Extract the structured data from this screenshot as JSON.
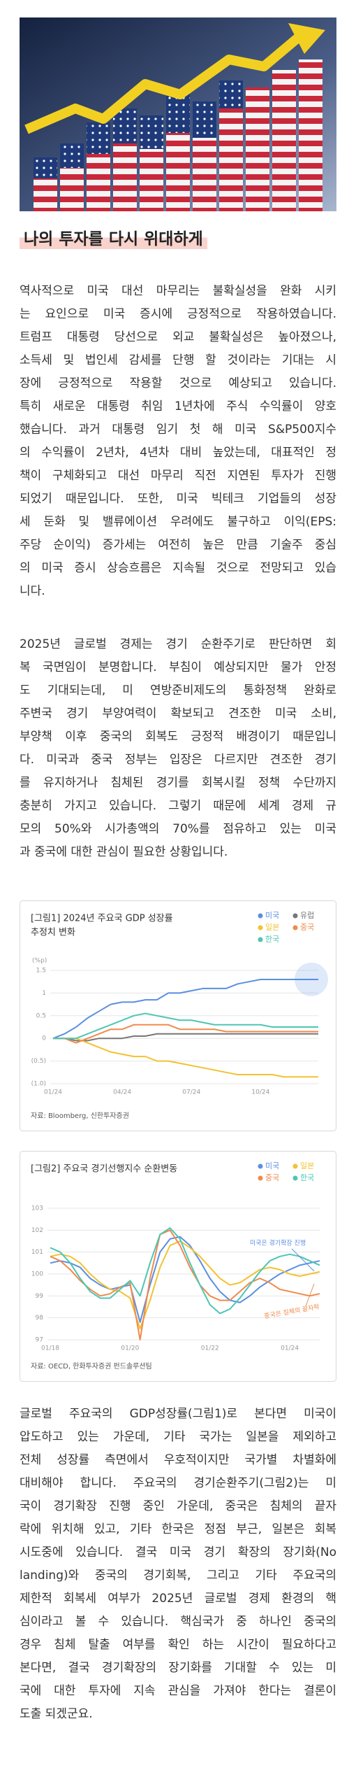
{
  "heading": "나의 투자를 다시 위대하게",
  "paragraphs": [
    [
      "역사적으로 미국 대선 마무리는 불확실성을 완화 시키",
      "는 요인으로 미국 증시에 긍정적으로 작용하였습니다.",
      "트럼프 대통령 당선으로 외교 불확실성은 높아졌으나,",
      "소득세 및 법인세 감세를 단행 할 것이라는 기대는 시",
      "장에 긍정적으로 작용할 것으로 예상되고 있습니다.",
      "특히 새로운 대통령 취임 1년차에 주식 수익률이 양호",
      "했습니다. 과거 대통령 임기 첫 해 미국 S&P500지수",
      "의 수익률이 2년차, 4년차 대비 높았는데, 대표적인 정",
      "책이 구체화되고 대선 마무리 직전 지연된 투자가 진행",
      "되었기 때문입니다. 또한, 미국 빅테크 기업들의 성장",
      "세 둔화 및 밸류에이션 우려에도 불구하고 이익(EPS:",
      "주당 순이익) 증가세는 여전히 높은 만큼 기술주 중심",
      "의 미국 증시 상승흐름은 지속될 것으로 전망되고 있습",
      "니다."
    ],
    [
      "2025년 글로벌 경제는 경기 순환주기로 판단하면 회",
      "복 국면임이 분명합니다. 부침이 예상되지만 물가 안정",
      "도 기대되는데, 미 연방준비제도의 통화정책 완화로",
      "주변국 경기 부양여력이 확보되고 견조한 미국 소비,",
      "부양책 이후 중국의 회복도 긍정적 배경이기 때문입니",
      "다. 미국과 중국 정부는 입장은 다르지만 견조한 경기",
      "를 유지하거나 침체된 경기를 회복시킬 정책 수단까지",
      "충분히 가지고 있습니다. 그렇기 때문에 세계 경제 규",
      "모의 50%와 시가총액의 70%를 점유하고 있는 미국",
      "과 중국에 대한 관심이 필요한 상황입니다."
    ],
    [
      "글로벌 주요국의 GDP성장률(그림1)로 본다면 미국이",
      "압도하고 있는 가운데, 기타 국가는 일본을 제외하고",
      "전체 성장률 측면에서 우호적이지만 국가별 차별화에",
      "대비해야 합니다. 주요국의 경기순환주기(그림2)는 미",
      "국이 경기확장 진행 중인 가운데, 중국은 침체의 끝자",
      "락에 위치해 있고, 기타 한국은 정점 부근, 일본은 회복",
      "시도중에 있습니다. 결국 미국 경기 확장의 장기화(No",
      "landing)와 중국의 경기회복, 그리고 기타 주요국의",
      "제한적 회복세 여부가 2025년 글로벌 경제 환경의 핵",
      "심이라고 볼 수 있습니다. 핵심국가 중 하나인 중국의",
      "경우 침체 탈출 여부를 확인 하는 시간이 필요하다고",
      "본다면, 결국 경기확장의 장기화를 기대할 수 있는 미",
      "국에 대한 투자에 지속 관심을 가져야 한다는 결론이",
      "도출 되겠군요."
    ]
  ],
  "figures": [
    {
      "type": "line",
      "title": [
        "[그림1] 2024년 주요국 GDP 성장률",
        "추정치 변화"
      ],
      "unit": "(%p)",
      "source": "자료: Bloomberg, 신한투자증권",
      "categories": [
        "01/24",
        null,
        null,
        null,
        null,
        null,
        "04/24",
        null,
        null,
        null,
        null,
        null,
        "07/24",
        null,
        null,
        null,
        null,
        null,
        "10/24",
        null,
        null,
        null,
        null,
        null
      ],
      "ylim": [
        -1.0,
        1.5
      ],
      "yticks": [
        1.5,
        1.0,
        0.5,
        0.0,
        {
          "value": -0.5,
          "label": "(0.5)"
        },
        {
          "value": -1.0,
          "label": "(1.0)"
        }
      ],
      "grid": true,
      "series": [
        {
          "name": "미국",
          "color": "#5b8fe0",
          "values": [
            0,
            0.1,
            0.25,
            0.45,
            0.6,
            0.75,
            0.8,
            0.8,
            0.85,
            0.85,
            1.0,
            1.0,
            1.05,
            1.1,
            1.1,
            1.1,
            1.2,
            1.25,
            1.3,
            1.3,
            1.3,
            1.3,
            1.3,
            1.3
          ]
        },
        {
          "name": "유럽",
          "color": "#777777",
          "values": [
            0,
            0,
            -0.05,
            -0.05,
            0,
            0,
            0,
            0.05,
            0.05,
            0.1,
            0.1,
            0.1,
            0.1,
            0.1,
            0.1,
            0.1,
            0.1,
            0.1,
            0.1,
            0.1,
            0.1,
            0.1,
            0.1,
            0.1
          ]
        },
        {
          "name": "일본",
          "color": "#f2c230",
          "values": [
            0,
            0,
            0,
            -0.1,
            -0.2,
            -0.3,
            -0.35,
            -0.4,
            -0.4,
            -0.5,
            -0.5,
            -0.55,
            -0.6,
            -0.65,
            -0.7,
            -0.75,
            -0.8,
            -0.8,
            -0.8,
            -0.8,
            -0.85,
            -0.85,
            -0.85,
            -0.85
          ]
        },
        {
          "name": "중국",
          "color": "#f08a4b",
          "values": [
            0,
            0,
            -0.1,
            0,
            0.1,
            0.2,
            0.2,
            0.3,
            0.3,
            0.3,
            0.3,
            0.2,
            0.2,
            0.2,
            0.2,
            0.15,
            0.15,
            0.15,
            0.15,
            0.15,
            0.15,
            0.15,
            0.15,
            0.15
          ]
        },
        {
          "name": "한국",
          "color": "#4cc6b4",
          "values": [
            0,
            0,
            0,
            0.1,
            0.2,
            0.3,
            0.4,
            0.5,
            0.55,
            0.5,
            0.45,
            0.4,
            0.4,
            0.35,
            0.3,
            0.3,
            0.3,
            0.3,
            0.3,
            0.25,
            0.25,
            0.25,
            0.25,
            0.25
          ]
        }
      ]
    },
    {
      "type": "line",
      "title": [
        "[그림2] 주요국 경기선행지수 순환변동"
      ],
      "source": "자료: OECD, 한화투자증권 펀드솔루션팀",
      "categories": [
        "01/18",
        null,
        null,
        null,
        null,
        null,
        null,
        null,
        "01/20",
        null,
        null,
        null,
        null,
        null,
        null,
        null,
        "01/22",
        null,
        null,
        null,
        null,
        null,
        null,
        null,
        "01/24",
        null,
        null,
        null
      ],
      "ylim": [
        97,
        103
      ],
      "yticks": [
        103,
        102,
        101,
        100,
        99,
        98,
        97
      ],
      "grid": true,
      "annotations": [
        {
          "text": "미국은 경기확장 진행",
          "color": "#5b8fe0"
        },
        {
          "text": "중국은 침체의 끝자락",
          "color": "#f08a4b"
        }
      ],
      "series": [
        {
          "name": "미국",
          "color": "#5b8fe0",
          "values": [
            100.5,
            100.6,
            100.5,
            100.3,
            99.8,
            99.5,
            99.3,
            99.4,
            99.5,
            97.8,
            99.5,
            101.0,
            101.6,
            101.7,
            101.3,
            100.6,
            99.8,
            99.2,
            98.8,
            98.7,
            99.0,
            99.4,
            99.7,
            100.0,
            100.2,
            100.4,
            100.5,
            100.6
          ]
        },
        {
          "name": "일본",
          "color": "#f2c230",
          "values": [
            100.8,
            100.9,
            100.8,
            100.5,
            100.0,
            99.6,
            99.3,
            99.2,
            98.9,
            97.5,
            98.8,
            100.3,
            101.3,
            101.5,
            101.2,
            100.8,
            100.3,
            99.8,
            99.5,
            99.6,
            99.9,
            100.2,
            100.3,
            100.2,
            100.0,
            99.9,
            100.0,
            100.1
          ]
        },
        {
          "name": "중국",
          "color": "#f08a4b",
          "values": [
            100.8,
            100.6,
            100.2,
            99.7,
            99.3,
            99.0,
            99.1,
            99.4,
            99.6,
            97.0,
            99.8,
            101.8,
            102.0,
            101.3,
            100.3,
            99.5,
            99.0,
            98.8,
            98.8,
            99.2,
            99.6,
            99.8,
            99.6,
            99.3,
            99.2,
            99.1,
            99.0,
            99.1
          ]
        },
        {
          "name": "한국",
          "color": "#4cc6b4",
          "values": [
            101.2,
            101.0,
            100.5,
            99.8,
            99.2,
            98.9,
            98.9,
            99.3,
            99.7,
            99.0,
            100.5,
            101.8,
            102.1,
            101.6,
            100.5,
            99.5,
            98.6,
            98.2,
            98.4,
            98.9,
            99.5,
            100.1,
            100.6,
            100.8,
            100.9,
            100.8,
            100.6,
            100.4
          ]
        }
      ]
    }
  ]
}
